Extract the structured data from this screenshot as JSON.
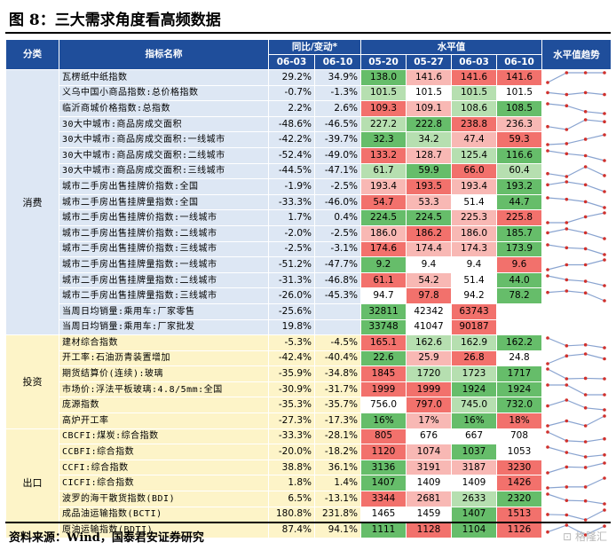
{
  "title": "图 8：三大需求角度看高频数据",
  "source": "资料来源：Wind，国泰君安证券研究",
  "watermark": "格隆汇",
  "header": {
    "category": "分类",
    "indicator": "指标名称",
    "yoy_group": "同比/变动*",
    "level_group": "水平值",
    "trend": "水平值趋势",
    "yoy_dates": [
      "06-03",
      "06-10"
    ],
    "level_dates": [
      "05-20",
      "05-27",
      "06-03",
      "06-10"
    ]
  },
  "colors": {
    "header": "#1f4e9b",
    "red": "#f2716c",
    "green": "#66bd6a",
    "light_red": "#f8b8b4",
    "light_green": "#b6dfb0",
    "spark_line": "#8aa4d0",
    "spark_dot": "#d0302c"
  },
  "groups": [
    {
      "name": "消费",
      "rows": [
        {
          "name": "瓦楞纸中纸指数",
          "yoy": [
            "29.2%",
            "34.9%"
          ],
          "levels": [
            "138.0",
            "141.6",
            "141.6",
            "141.6"
          ],
          "lc": [
            "g",
            "lr",
            "r",
            "r"
          ],
          "spark": [
            0.0,
            1.0,
            1.0,
            1.0
          ]
        },
        {
          "name": "义乌中国小商品指数:总价格指数",
          "yoy": [
            "-0.7%",
            "-1.3%"
          ],
          "levels": [
            "101.5",
            "101.5",
            "101.5",
            "101.5"
          ],
          "lc": [
            "lg",
            "w",
            "lg",
            "w"
          ],
          "spark": [
            0.6,
            0.4,
            0.6,
            0.4
          ]
        },
        {
          "name": "临沂商城价格指数:总指数",
          "yoy": [
            "2.2%",
            "2.6%"
          ],
          "levels": [
            "109.3",
            "109.1",
            "108.6",
            "108.5"
          ],
          "lc": [
            "r",
            "lr",
            "lg",
            "g"
          ],
          "spark": [
            1.0,
            0.8,
            0.2,
            0.0
          ]
        },
        {
          "name": "30大中城市:商品房成交面积",
          "yoy": [
            "-48.6%",
            "-46.5%"
          ],
          "levels": [
            "227.2",
            "222.8",
            "238.8",
            "236.3"
          ],
          "lc": [
            "lg",
            "g",
            "r",
            "lr"
          ],
          "spark": [
            0.3,
            0.0,
            1.0,
            0.8
          ]
        },
        {
          "name": "30大中城市:商品房成交面积:一线城市",
          "yoy": [
            "-42.2%",
            "-39.7%"
          ],
          "levels": [
            "32.3",
            "34.2",
            "47.4",
            "59.3"
          ],
          "lc": [
            "g",
            "lg",
            "lr",
            "r"
          ],
          "spark": [
            0.0,
            0.1,
            0.55,
            1.0
          ]
        },
        {
          "name": "30大中城市:商品房成交面积:二线城市",
          "yoy": [
            "-52.4%",
            "-49.0%"
          ],
          "levels": [
            "133.2",
            "128.7",
            "125.4",
            "116.6"
          ],
          "lc": [
            "r",
            "lr",
            "lg",
            "g"
          ],
          "spark": [
            1.0,
            0.7,
            0.5,
            0.0
          ]
        },
        {
          "name": "30大中城市:商品房成交面积:三线城市",
          "yoy": [
            "-44.5%",
            "-47.1%"
          ],
          "levels": [
            "61.7",
            "59.9",
            "66.0",
            "60.4"
          ],
          "lc": [
            "lg",
            "g",
            "r",
            "lg"
          ],
          "spark": [
            0.3,
            0.0,
            1.0,
            0.1
          ]
        },
        {
          "name": "城市二手房出售挂牌价指数:全国",
          "yoy": [
            "-1.9%",
            "-2.5%"
          ],
          "levels": [
            "193.4",
            "193.5",
            "193.4",
            "193.2"
          ],
          "lc": [
            "lr",
            "r",
            "lr",
            "g"
          ],
          "spark": [
            0.7,
            1.0,
            0.7,
            0.0
          ]
        },
        {
          "name": "城市二手房出售挂牌量指数:全国",
          "yoy": [
            "-33.3%",
            "-46.0%"
          ],
          "levels": [
            "54.7",
            "53.3",
            "51.4",
            "44.7"
          ],
          "lc": [
            "r",
            "lr",
            "w",
            "g"
          ],
          "spark": [
            1.0,
            0.85,
            0.6,
            0.0
          ]
        },
        {
          "name": "城市二手房出售挂牌价指数:一线城市",
          "yoy": [
            "1.7%",
            "0.4%"
          ],
          "levels": [
            "224.5",
            "224.5",
            "225.3",
            "225.8"
          ],
          "lc": [
            "g",
            "g",
            "lr",
            "r"
          ],
          "spark": [
            0.0,
            0.0,
            0.6,
            1.0
          ]
        },
        {
          "name": "城市二手房出售挂牌价指数:二线城市",
          "yoy": [
            "-2.0%",
            "-2.5%"
          ],
          "levels": [
            "186.0",
            "186.2",
            "186.0",
            "185.7"
          ],
          "lc": [
            "lr",
            "r",
            "lr",
            "g"
          ],
          "spark": [
            0.6,
            1.0,
            0.6,
            0.0
          ]
        },
        {
          "name": "城市二手房出售挂牌价指数:三线城市",
          "yoy": [
            "-2.5%",
            "-3.1%"
          ],
          "levels": [
            "174.6",
            "174.4",
            "174.3",
            "173.9"
          ],
          "lc": [
            "r",
            "lr",
            "lr",
            "g"
          ],
          "spark": [
            1.0,
            0.7,
            0.6,
            0.0
          ]
        },
        {
          "name": "城市二手房出售挂牌量指数:一线城市",
          "yoy": [
            "-51.2%",
            "-47.7%"
          ],
          "levels": [
            "9.2",
            "9.4",
            "9.4",
            "9.6"
          ],
          "lc": [
            "g",
            "w",
            "w",
            "r"
          ],
          "spark": [
            0.0,
            0.5,
            0.5,
            1.0
          ]
        },
        {
          "name": "城市二手房出售挂牌量指数:二线城市",
          "yoy": [
            "-31.3%",
            "-46.8%"
          ],
          "levels": [
            "61.1",
            "54.2",
            "51.4",
            "44.0"
          ],
          "lc": [
            "r",
            "lr",
            "w",
            "g"
          ],
          "spark": [
            1.0,
            0.6,
            0.45,
            0.0
          ]
        },
        {
          "name": "城市二手房出售挂牌量指数:三线城市",
          "yoy": [
            "-26.0%",
            "-45.3%"
          ],
          "levels": [
            "94.7",
            "97.8",
            "94.2",
            "78.2"
          ],
          "lc": [
            "w",
            "r",
            "w",
            "g"
          ],
          "spark": [
            0.85,
            1.0,
            0.8,
            0.0
          ]
        },
        {
          "name": "当周日均销量:乘用车:厂家零售",
          "yoy": [
            "-25.6%",
            ""
          ],
          "levels": [
            "32811",
            "42342",
            "63743",
            ""
          ],
          "lc": [
            "g",
            "w",
            "r",
            "x"
          ],
          "spark": []
        },
        {
          "name": "当周日均销量:乘用车:厂家批发",
          "yoy": [
            "19.8%",
            ""
          ],
          "levels": [
            "33748",
            "41047",
            "90187",
            ""
          ],
          "lc": [
            "g",
            "w",
            "r",
            "x"
          ],
          "spark": []
        }
      ]
    },
    {
      "name": "投资",
      "rows": [
        {
          "name": "建材综合指数",
          "yoy": [
            "-5.3%",
            "-4.5%"
          ],
          "levels": [
            "165.1",
            "162.6",
            "162.9",
            "162.2"
          ],
          "lc": [
            "r",
            "lg",
            "lg",
            "g"
          ],
          "spark": [
            1.0,
            0.2,
            0.3,
            0.0
          ]
        },
        {
          "name": "开工率:石油沥青装置增加",
          "yoy": [
            "-42.4%",
            "-40.4%"
          ],
          "levels": [
            "22.6",
            "25.9",
            "26.8",
            "24.8"
          ],
          "lc": [
            "g",
            "lr",
            "r",
            "w"
          ],
          "spark": [
            0.0,
            0.8,
            1.0,
            0.5
          ]
        },
        {
          "name": "期货结算价(连续):玻璃",
          "yoy": [
            "-35.9%",
            "-34.8%"
          ],
          "levels": [
            "1845",
            "1720",
            "1723",
            "1717"
          ],
          "lc": [
            "r",
            "lg",
            "lg",
            "g"
          ],
          "spark": [
            1.0,
            0.0,
            0.05,
            0.0
          ]
        },
        {
          "name": "市场价:浮法平板玻璃:4.8/5mm:全国",
          "yoy": [
            "-30.9%",
            "-31.7%"
          ],
          "levels": [
            "1999",
            "1999",
            "1924",
            "1924"
          ],
          "lc": [
            "r",
            "r",
            "g",
            "g"
          ],
          "spark": [
            1.0,
            1.0,
            0.0,
            0.0
          ]
        },
        {
          "name": "庞源指数",
          "yoy": [
            "-35.3%",
            "-35.7%"
          ],
          "levels": [
            "756.0",
            "797.0",
            "745.0",
            "732.0"
          ],
          "lc": [
            "w",
            "r",
            "lg",
            "g"
          ],
          "spark": [
            0.4,
            1.0,
            0.2,
            0.0
          ]
        },
        {
          "name": "高炉开工率",
          "yoy": [
            "-27.3%",
            "-17.3%"
          ],
          "levels": [
            "16%",
            "17%",
            "16%",
            "18%"
          ],
          "lc": [
            "g",
            "lr",
            "g",
            "r"
          ],
          "spark": [
            0.0,
            0.5,
            0.0,
            1.0
          ]
        }
      ]
    },
    {
      "name": "出口",
      "rows": [
        {
          "name": "CBCFI:煤炭:综合指数",
          "yoy": [
            "-33.3%",
            "-28.1%"
          ],
          "levels": [
            "805",
            "676",
            "667",
            "708"
          ],
          "lc": [
            "r",
            "w",
            "w",
            "w"
          ],
          "spark": [
            1.0,
            0.1,
            0.0,
            0.3
          ]
        },
        {
          "name": "CCBFI:综合指数",
          "yoy": [
            "-20.0%",
            "-18.2%"
          ],
          "levels": [
            "1120",
            "1074",
            "1037",
            "1053"
          ],
          "lc": [
            "r",
            "lr",
            "g",
            "w"
          ],
          "spark": [
            1.0,
            0.45,
            0.0,
            0.2
          ]
        },
        {
          "name": "CCFI:综合指数",
          "yoy": [
            "38.8%",
            "36.1%"
          ],
          "levels": [
            "3136",
            "3191",
            "3187",
            "3230"
          ],
          "lc": [
            "g",
            "lr",
            "lr",
            "r"
          ],
          "spark": [
            0.0,
            0.6,
            0.55,
            1.0
          ]
        },
        {
          "name": "CICFI:综合指数",
          "yoy": [
            "1.8%",
            "1.4%"
          ],
          "levels": [
            "1407",
            "1409",
            "1409",
            "1426"
          ],
          "lc": [
            "g",
            "w",
            "w",
            "r"
          ],
          "spark": [
            0.0,
            0.1,
            0.1,
            1.0
          ]
        },
        {
          "name": "波罗的海干散货指数(BDI)",
          "yoy": [
            "6.5%",
            "-13.1%"
          ],
          "levels": [
            "3344",
            "2681",
            "2633",
            "2320"
          ],
          "lc": [
            "r",
            "lr",
            "lg",
            "g"
          ],
          "spark": [
            1.0,
            0.35,
            0.3,
            0.0
          ]
        },
        {
          "name": "成品油运输指数(BCTI)",
          "yoy": [
            "180.8%",
            "231.8%"
          ],
          "levels": [
            "1465",
            "1459",
            "1407",
            "1513"
          ],
          "lc": [
            "w",
            "w",
            "g",
            "r"
          ],
          "spark": [
            0.55,
            0.5,
            0.0,
            1.0
          ]
        },
        {
          "name": "原油运输指数(BDTI)",
          "yoy": [
            "87.4%",
            "94.1%"
          ],
          "levels": [
            "1111",
            "1128",
            "1104",
            "1126"
          ],
          "lc": [
            "g",
            "r",
            "g",
            "r"
          ],
          "spark": [
            0.3,
            1.0,
            0.0,
            0.9
          ]
        }
      ]
    }
  ]
}
